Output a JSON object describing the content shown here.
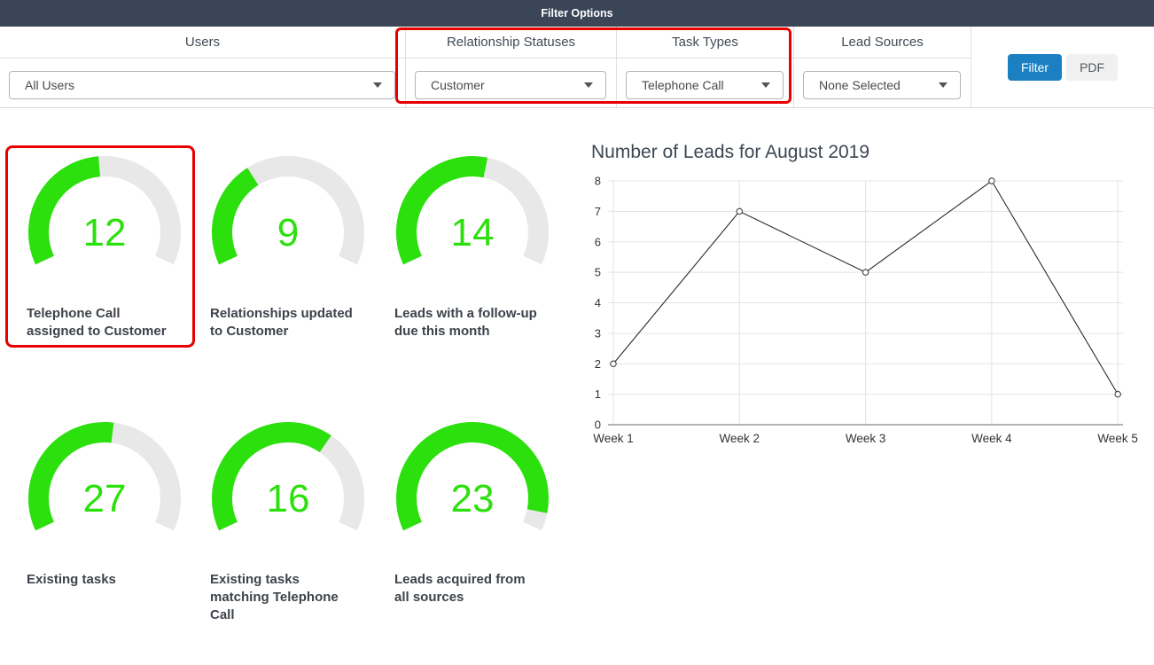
{
  "header": {
    "title": "Filter Options"
  },
  "filters": {
    "columns": [
      {
        "label": "Users",
        "value": "All Users",
        "highlighted": false
      },
      {
        "label": "Relationship Statuses",
        "value": "Customer",
        "highlighted": true
      },
      {
        "label": "Task Types",
        "value": "Telephone Call",
        "highlighted": true
      },
      {
        "label": "Lead Sources",
        "value": "None Selected",
        "highlighted": false
      }
    ],
    "filter_button": "Filter",
    "pdf_button": "PDF",
    "dropdown_caret_icon": "chevron-down"
  },
  "gauges": [
    {
      "value": 12,
      "fraction": 0.48,
      "label": "Telephone Call assigned to Customer",
      "highlighted": true
    },
    {
      "value": 9,
      "fraction": 0.36,
      "label": "Relationships updated to Customer",
      "highlighted": false
    },
    {
      "value": 14,
      "fraction": 0.55,
      "label": "Leads with a follow-up due this month",
      "highlighted": false
    },
    {
      "value": 27,
      "fraction": 0.53,
      "label": "Existing tasks",
      "highlighted": false
    },
    {
      "value": 16,
      "fraction": 0.65,
      "label": "Existing tasks matching Telephone Call",
      "highlighted": false
    },
    {
      "value": 23,
      "fraction": 0.94,
      "label": "Leads acquired from all sources",
      "highlighted": false
    }
  ],
  "chart_data": {
    "type": "line",
    "title": "Number of Leads for August 2019",
    "categories": [
      "Week 1",
      "Week 2",
      "Week 3",
      "Week 4",
      "Week 5"
    ],
    "values": [
      2,
      7,
      5,
      8,
      1
    ],
    "xlabel": "",
    "ylabel": "",
    "ylim": [
      0,
      8
    ],
    "yticks": [
      0,
      1,
      2,
      3,
      4,
      5,
      6,
      7,
      8
    ],
    "grid": true,
    "legend": "none",
    "line_color": "#2a2a2a",
    "marker": "open-circle"
  },
  "colors": {
    "header_bg": "#3a4557",
    "button_blue": "#1a80c2",
    "highlight_red": "#e80000",
    "gauge_green": "#2ce00d",
    "gauge_track": "#e8e8e8",
    "gridline": "#e3e3e3",
    "axis": "#888888"
  }
}
